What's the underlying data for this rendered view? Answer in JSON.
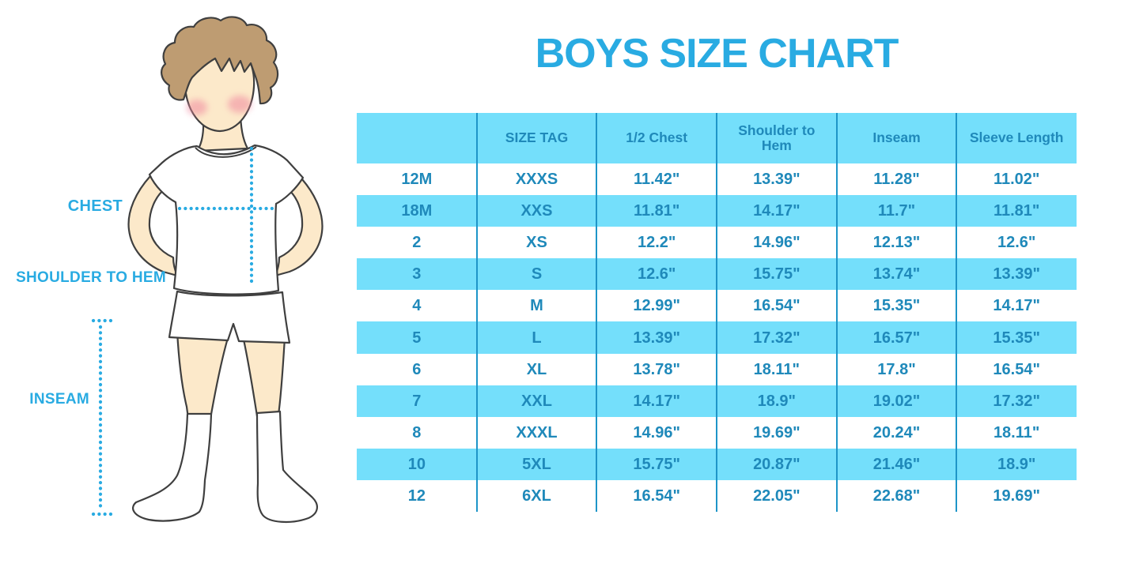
{
  "title": "BOYS SIZE CHART",
  "figure_labels": {
    "chest": "CHEST",
    "shoulder_to_hem": "SHOULDER TO HEM",
    "inseam": "INSEAM"
  },
  "chart_data": {
    "type": "table",
    "title": "BOYS SIZE CHART",
    "units": "inches",
    "columns": [
      "",
      "SIZE TAG",
      "1/2 Chest",
      "Shoulder to Hem",
      "Inseam",
      "Sleeve Length"
    ],
    "rows": [
      [
        "12M",
        "XXXS",
        "11.42\"",
        "13.39\"",
        "11.28\"",
        "11.02\""
      ],
      [
        "18M",
        "XXS",
        "11.81\"",
        "14.17\"",
        "11.7\"",
        "11.81\""
      ],
      [
        "2",
        "XS",
        "12.2\"",
        "14.96\"",
        "12.13\"",
        "12.6\""
      ],
      [
        "3",
        "S",
        "12.6\"",
        "15.75\"",
        "13.74\"",
        "13.39\""
      ],
      [
        "4",
        "M",
        "12.99\"",
        "16.54\"",
        "15.35\"",
        "14.17\""
      ],
      [
        "5",
        "L",
        "13.39\"",
        "17.32\"",
        "16.57\"",
        "15.35\""
      ],
      [
        "6",
        "XL",
        "13.78\"",
        "18.11\"",
        "17.8\"",
        "16.54\""
      ],
      [
        "7",
        "XXL",
        "14.17\"",
        "18.9\"",
        "19.02\"",
        "17.32\""
      ],
      [
        "8",
        "XXXL",
        "14.96\"",
        "19.69\"",
        "20.24\"",
        "18.11\""
      ],
      [
        "10",
        "5XL",
        "15.75\"",
        "20.87\"",
        "21.46\"",
        "18.9\""
      ],
      [
        "12",
        "6XL",
        "16.54\"",
        "22.05\"",
        "22.68\"",
        "19.69\""
      ]
    ],
    "highlighted_rows": [
      "18M",
      "3",
      "5",
      "7",
      "10"
    ],
    "legend_position": "none",
    "grid": "vertical column dividers only"
  },
  "colors": {
    "accent": "#29ABE2",
    "table_fill": "#74DFFB",
    "table_text": "#1F89BA",
    "divider": "#1E95C8",
    "hair": "#BE9C72",
    "skin": "#FCE9CA",
    "cheek": "#F0889F",
    "outline": "#3F3F3F"
  }
}
